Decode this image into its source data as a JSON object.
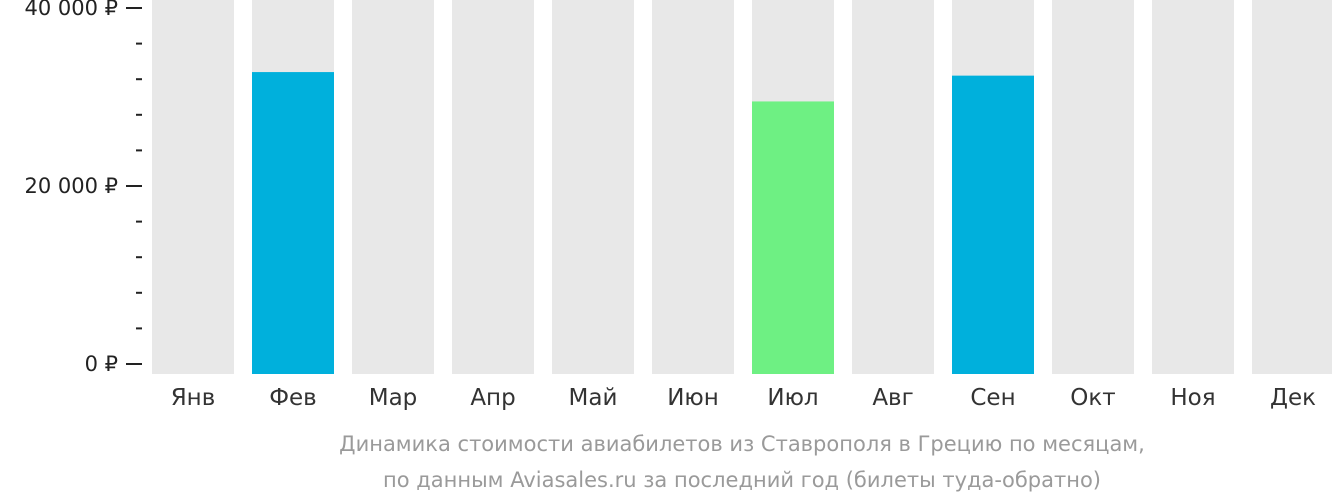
{
  "chart_data": {
    "type": "bar",
    "categories": [
      "Янв",
      "Фев",
      "Мар",
      "Апр",
      "Май",
      "Июн",
      "Июл",
      "Авг",
      "Сен",
      "Окт",
      "Ноя",
      "Дек"
    ],
    "values": [
      null,
      32800,
      null,
      null,
      null,
      null,
      29500,
      null,
      32400,
      null,
      null,
      null
    ],
    "bar_colors": [
      null,
      "#00b0dc",
      null,
      null,
      null,
      null,
      "#6ef083",
      null,
      "#00b0dc",
      null,
      null,
      null
    ],
    "background_bar_color": "#e8e8e8",
    "ylim": [
      0,
      40000
    ],
    "yticks": [
      {
        "value": 0,
        "label": "0 ₽"
      },
      {
        "value": 20000,
        "label": "20 000 ₽"
      },
      {
        "value": 40000,
        "label": "40 000 ₽"
      }
    ],
    "minor_tick_step": 4000,
    "caption": [
      "Динамика стоимости авиабилетов из Ставрополя в Грецию по месяцам,",
      "по данным Aviasales.ru за последний год (билеты туда-обратно)"
    ]
  }
}
